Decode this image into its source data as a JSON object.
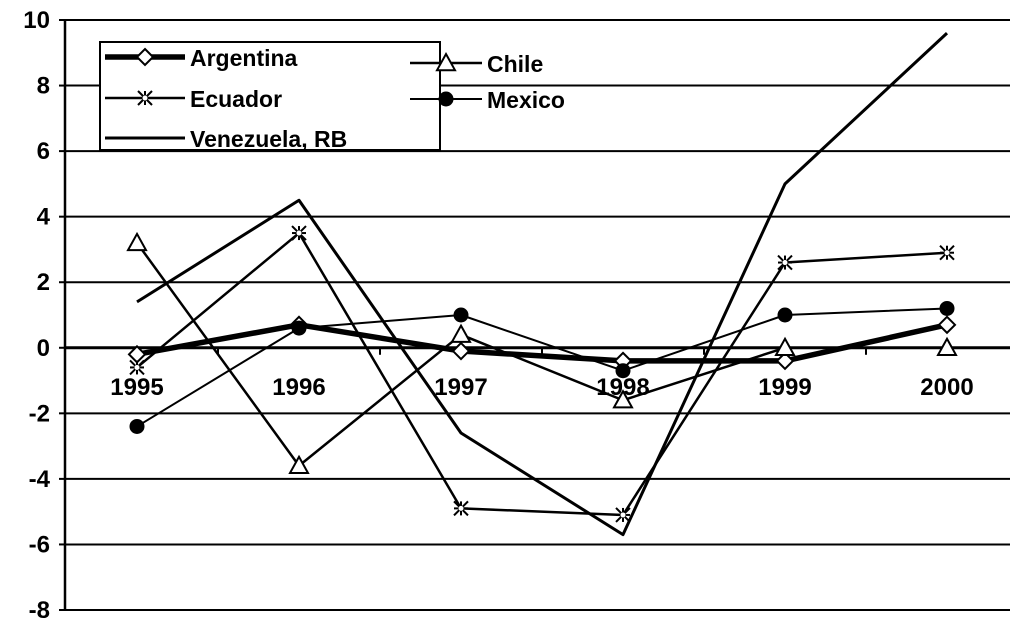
{
  "chart_data": {
    "type": "line",
    "title": "",
    "xlabel": "",
    "ylabel": "",
    "categories": [
      "1995",
      "1996",
      "1997",
      "1998",
      "1999",
      "2000"
    ],
    "ylim": [
      -8,
      10
    ],
    "yticks": [
      -8,
      -6,
      -4,
      -2,
      0,
      2,
      4,
      6,
      8,
      10
    ],
    "grid": "horizontal",
    "legend_position": "top-left",
    "series": [
      {
        "name": "Argentina",
        "marker": "diamond",
        "values": [
          -0.2,
          0.7,
          -0.1,
          -0.4,
          -0.4,
          0.7
        ]
      },
      {
        "name": "Chile",
        "marker": "triangle",
        "values": [
          3.2,
          -3.6,
          0.4,
          -1.6,
          0.0,
          0.0
        ]
      },
      {
        "name": "Ecuador",
        "marker": "star",
        "values": [
          -0.6,
          3.5,
          -4.9,
          -5.1,
          2.6,
          2.9
        ]
      },
      {
        "name": "Mexico",
        "marker": "circle",
        "values": [
          -2.4,
          0.6,
          1.0,
          -0.7,
          1.0,
          1.2
        ]
      },
      {
        "name": "Venezuela, RB",
        "marker": "none",
        "values": [
          1.4,
          4.5,
          -2.6,
          -5.7,
          5.0,
          9.6
        ]
      }
    ]
  }
}
